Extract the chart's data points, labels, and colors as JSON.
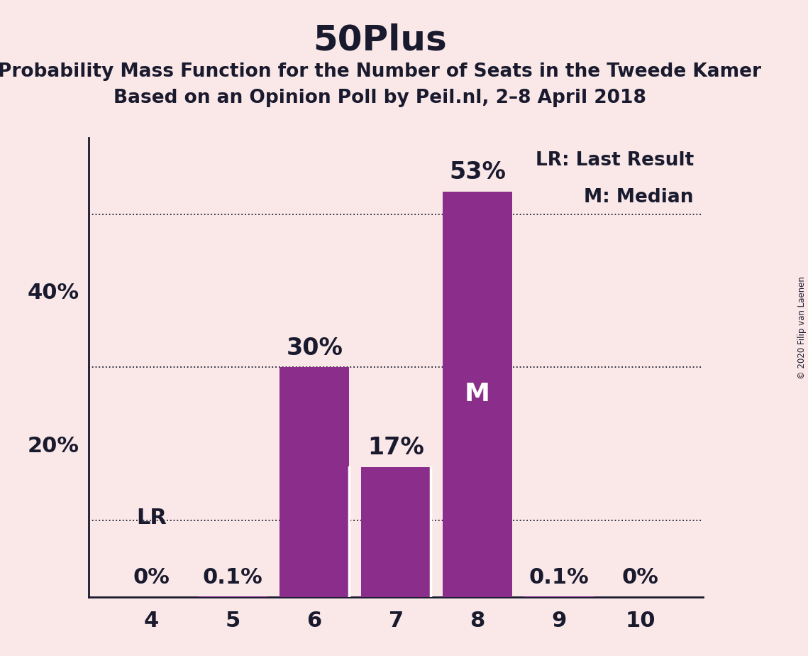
{
  "title": "50Plus",
  "subtitle1": "Probability Mass Function for the Number of Seats in the Tweede Kamer",
  "subtitle2": "Based on an Opinion Poll by Peil.nl, 2–8 April 2018",
  "copyright": "© 2020 Filip van Laenen",
  "categories": [
    4,
    5,
    6,
    7,
    8,
    9,
    10
  ],
  "values": [
    0.0,
    0.1,
    30.0,
    17.0,
    53.0,
    0.1,
    0.0
  ],
  "bar_color": "#8B2E8B",
  "background_color": "#FAE8E8",
  "label_color": "#1a1a2e",
  "ytick_labels": [
    "20%",
    "40%"
  ],
  "ytick_positions": [
    20,
    40
  ],
  "grid_lines": [
    10,
    30,
    50
  ],
  "ylim": [
    0,
    60
  ],
  "grid_color": "#1a1a2e",
  "lr_seat": 4,
  "median_seat": 8,
  "bar_labels": [
    "0%",
    "0.1%",
    "30%",
    "17%",
    "53%",
    "0.1%",
    "0%"
  ],
  "legend_lr": "LR: Last Result",
  "legend_m": "M: Median"
}
